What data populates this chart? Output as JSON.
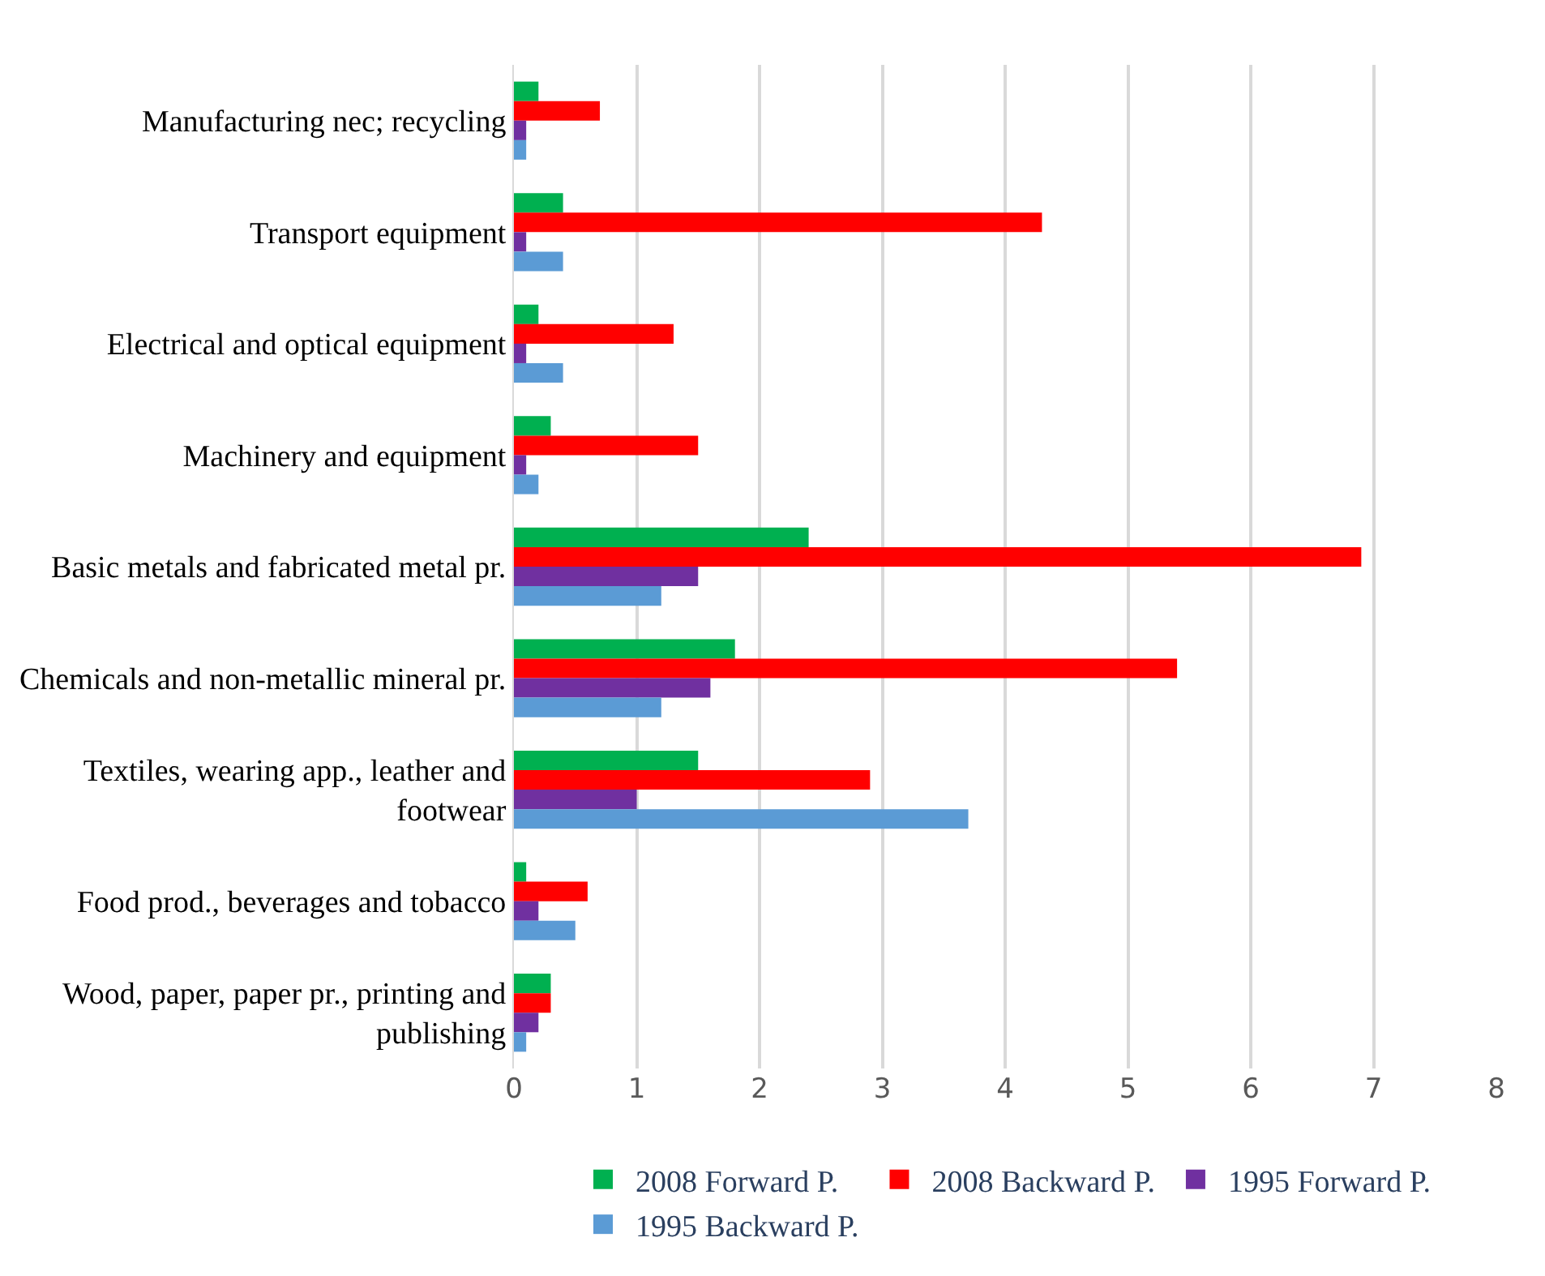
{
  "chart_data": {
    "type": "bar",
    "orientation": "horizontal",
    "categories": [
      "Manufacturing nec; recycling",
      "Transport equipment",
      "Electrical and optical equipment",
      "Machinery and equipment",
      "Basic metals and fabricated metal pr.",
      "Chemicals and non-metallic mineral pr.",
      "Textiles, wearing app., leather and footwear",
      "Food prod., beverages and tobacco",
      "Wood, paper, paper pr., printing and publishing"
    ],
    "series": [
      {
        "name": "2008 Forward P.",
        "color": "#00b050",
        "values": [
          0.2,
          0.4,
          0.2,
          0.3,
          2.4,
          1.8,
          1.5,
          0.1,
          0.3
        ]
      },
      {
        "name": "2008 Backward P.",
        "color": "#ff0000",
        "values": [
          0.7,
          4.3,
          1.3,
          1.5,
          6.9,
          5.4,
          2.9,
          0.6,
          0.3
        ]
      },
      {
        "name": "1995 Forward P.",
        "color": "#7030a0",
        "values": [
          0.1,
          0.1,
          0.1,
          0.1,
          1.5,
          1.6,
          1.0,
          0.2,
          0.2
        ]
      },
      {
        "name": "1995 Backward P.",
        "color": "#5b9bd5",
        "values": [
          0.1,
          0.4,
          0.4,
          0.2,
          1.2,
          1.2,
          3.7,
          0.5,
          0.1
        ]
      }
    ],
    "xlim": [
      0,
      8
    ],
    "xticks": [
      0,
      1,
      2,
      3,
      4,
      5,
      6,
      7,
      8
    ],
    "grid": "x",
    "legend": "bottom"
  }
}
